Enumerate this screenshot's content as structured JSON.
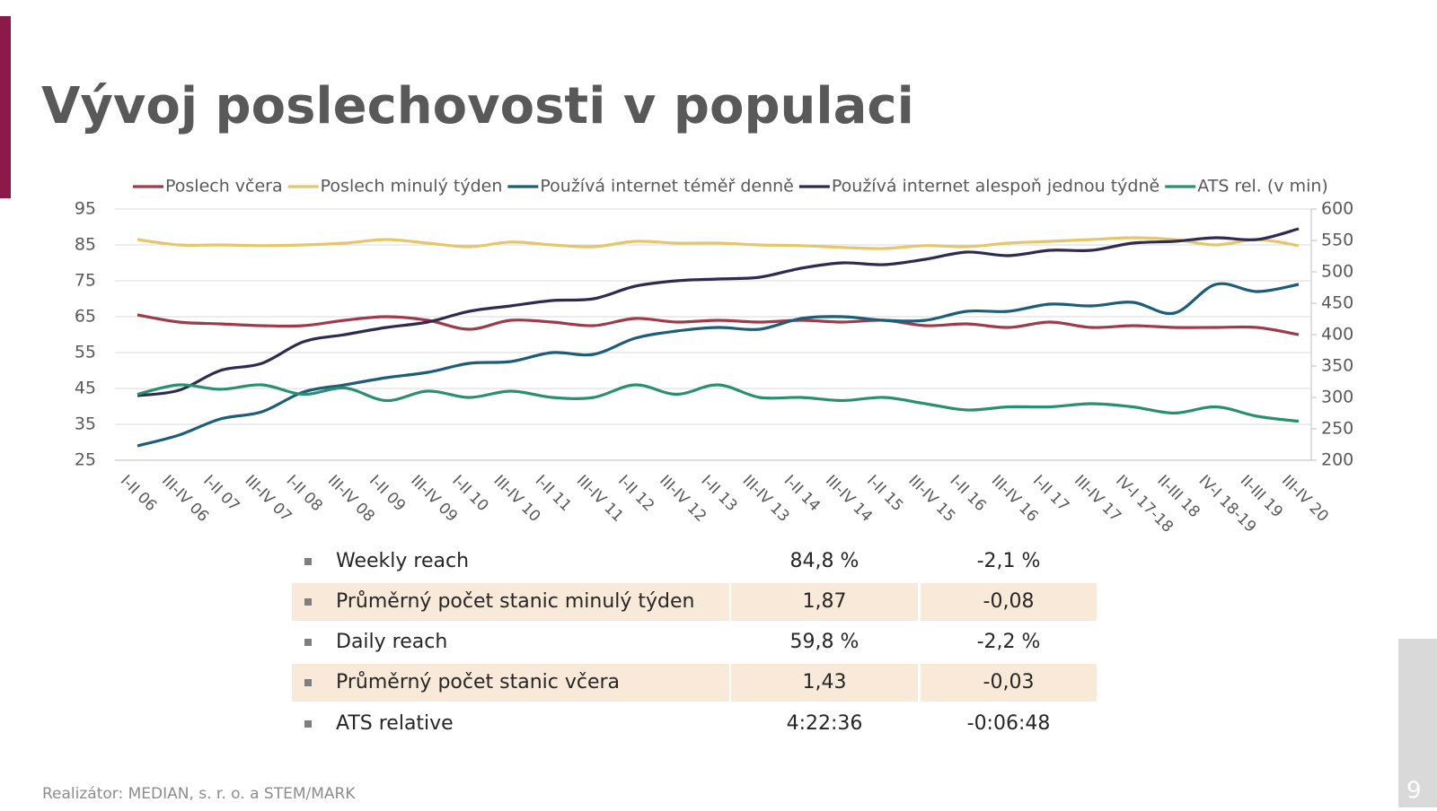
{
  "slide": {
    "title": "Vývoj poslechovosti v populaci",
    "footer": "Realizátor: MEDIAN, s. r. o. a STEM/MARK",
    "page_number": "9"
  },
  "chart_data": {
    "type": "line",
    "categories": [
      "I-II 06",
      "III-IV 06",
      "I-II 07",
      "III-IV 07",
      "I-II 08",
      "III-IV 08",
      "I-II 09",
      "III-IV 09",
      "I-II 10",
      "III-IV 10",
      "I-II 11",
      "III-IV 11",
      "I-II 12",
      "III-IV 12",
      "I-II 13",
      "III-IV 13",
      "I-II 14",
      "III-IV 14",
      "I-II 15",
      "III-IV 15",
      "I-II 16",
      "III-IV 16",
      "I-II 17",
      "III-IV 17",
      "IV-I 17-18",
      "II-III 18",
      "IV-I 18-19",
      "II-III 19",
      "III-IV 20"
    ],
    "series": [
      {
        "name": "Poslech včera",
        "color": "#9e3a4a",
        "values": [
          65.5,
          63.5,
          63,
          62.5,
          62.5,
          64,
          65,
          64,
          61.5,
          64,
          63.5,
          62.5,
          64.5,
          63.5,
          64,
          63.5,
          64,
          63.5,
          64,
          62.5,
          63,
          62,
          63.5,
          62,
          62.5,
          62,
          62,
          62,
          60
        ]
      },
      {
        "name": "Poslech minulý týden",
        "color": "#e6c66a",
        "values": [
          86.5,
          85,
          85,
          84.8,
          85,
          85.5,
          86.5,
          85.5,
          84.5,
          85.8,
          85,
          84.5,
          86,
          85.5,
          85.5,
          85,
          84.8,
          84.3,
          84,
          84.8,
          84.5,
          85.5,
          86,
          86.5,
          87,
          86.5,
          85,
          86.5,
          84.8
        ]
      },
      {
        "name": "Používá internet téměř denně",
        "color": "#1c5d78",
        "values": [
          29,
          32,
          36.5,
          38.5,
          44,
          46,
          48,
          49.5,
          52,
          52.5,
          55,
          54.5,
          59,
          61,
          62,
          61.5,
          64.5,
          65,
          64,
          64,
          66.5,
          66.5,
          68.5,
          68,
          69,
          66,
          74,
          72,
          74
        ]
      },
      {
        "name": "Používá internet alespoň jednou týdně",
        "color": "#2f2b50",
        "values": [
          43,
          44.5,
          50,
          52,
          58,
          60,
          62,
          63.5,
          66.5,
          68,
          69.5,
          70,
          73.5,
          75,
          75.5,
          76,
          78.5,
          80,
          79.5,
          81,
          83,
          82,
          83.5,
          83.5,
          85.5,
          86,
          87,
          86.5,
          89.5
        ]
      },
      {
        "name": "ATS rel. (v min)",
        "color": "#2a8f70",
        "axis": "y2",
        "values": [
          305,
          320,
          313,
          320,
          305,
          315,
          295,
          310,
          300,
          310,
          300,
          300,
          320,
          305,
          320,
          300,
          300,
          295,
          300,
          290,
          280,
          285,
          285,
          290,
          285,
          275,
          285,
          270,
          262
        ]
      }
    ],
    "ylim": [
      25,
      95
    ],
    "yticks": [
      25,
      35,
      45,
      55,
      65,
      75,
      85,
      95
    ],
    "y2lim": [
      200,
      600
    ],
    "y2ticks": [
      200,
      250,
      300,
      350,
      400,
      450,
      500,
      550,
      600
    ],
    "grid": true,
    "legend": "top"
  },
  "table": {
    "rows": [
      [
        "Weekly reach",
        "84,8 %",
        "-2,1 %"
      ],
      [
        "Průměrný počet stanic minulý týden",
        "1,87",
        "-0,08"
      ],
      [
        "Daily reach",
        "59,8 %",
        "-2,2 %"
      ],
      [
        "Průměrný počet stanic včera",
        "1,43",
        "-0,03"
      ],
      [
        "ATS relative",
        "4:22:36",
        "-0:06:48"
      ]
    ]
  }
}
